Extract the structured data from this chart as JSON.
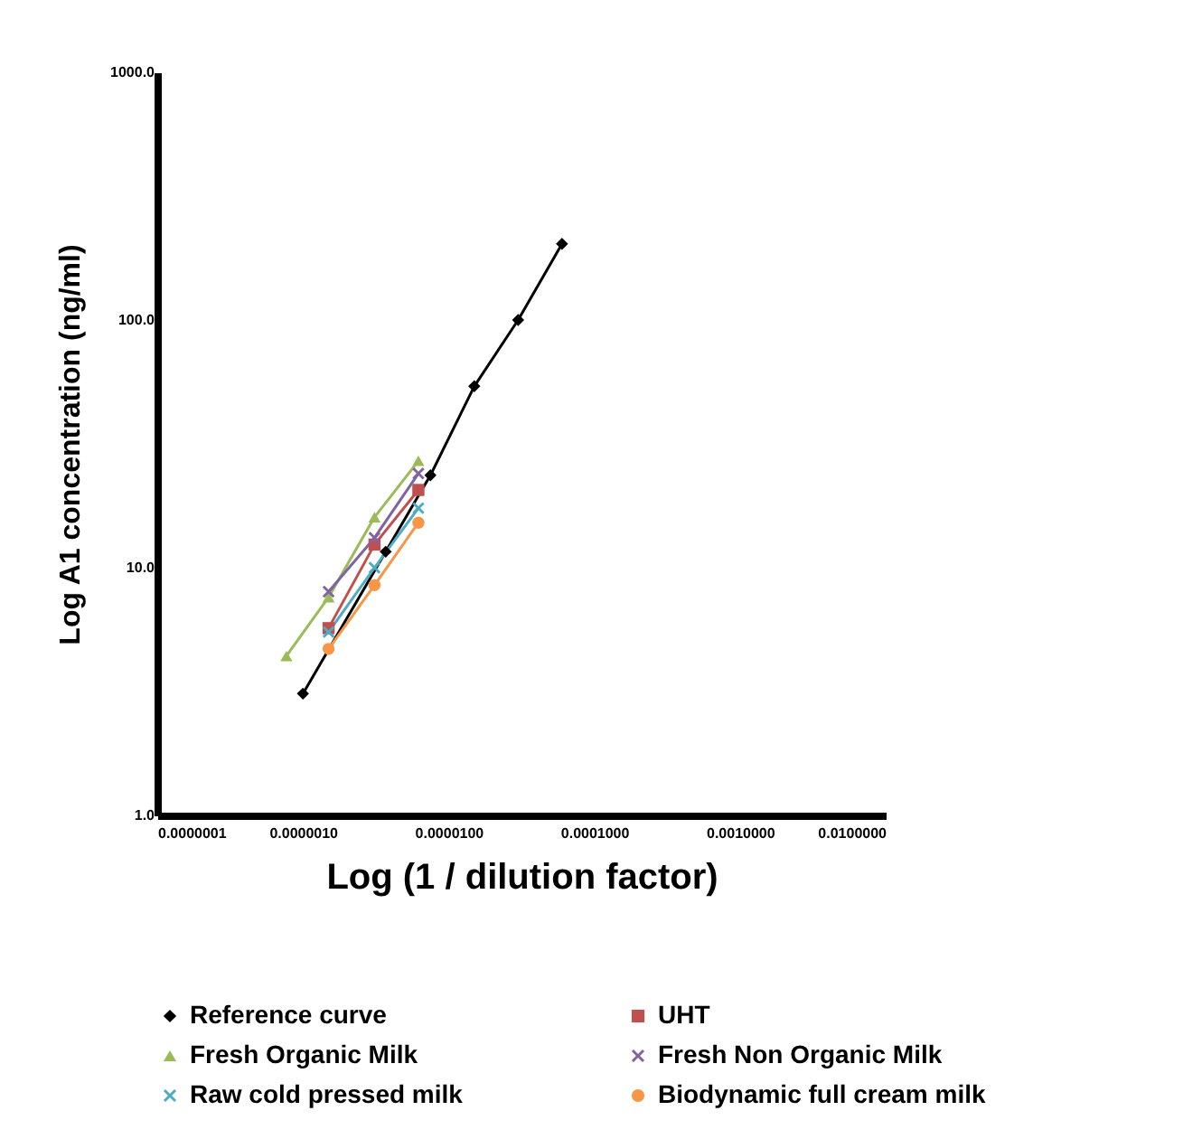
{
  "chart_data": {
    "type": "line",
    "xlabel": "Log (1 / dilution factor)",
    "ylabel": "Log A1 concentration (ng/ml)",
    "log": "xy",
    "xlim": [
      1e-07,
      0.01
    ],
    "ylim": [
      1,
      1000
    ],
    "xticks": [
      {
        "value": 1e-07,
        "label": "0.0000001"
      },
      {
        "value": 1e-06,
        "label": "0.0000010"
      },
      {
        "value": 1e-05,
        "label": "0.0000100"
      },
      {
        "value": 0.0001,
        "label": "0.0001000"
      },
      {
        "value": 0.001,
        "label": "0.0010000"
      },
      {
        "value": 0.01,
        "label": "0.0100000"
      }
    ],
    "yticks": [
      {
        "value": 1,
        "label": "1.0"
      },
      {
        "value": 10,
        "label": "10.0"
      },
      {
        "value": 100,
        "label": "100.0"
      },
      {
        "value": 1000,
        "label": "1000.0"
      }
    ],
    "grid": false,
    "legend": "bottom",
    "line_style": "solid",
    "series": [
      {
        "name": "Reference curve",
        "color": "#000000",
        "marker": "diamond",
        "x": [
          1e-06,
          3.7e-06,
          7.5e-06,
          1.5e-05,
          3e-05,
          6e-05
        ],
        "values": [
          3.1,
          11.6,
          23.6,
          54,
          100,
          203
        ]
      },
      {
        "name": "UHT",
        "color": "#c0504d",
        "marker": "square",
        "x": [
          1.5e-06,
          3.1e-06,
          6.2e-06
        ],
        "values": [
          5.7,
          12.4,
          20.6
        ]
      },
      {
        "name": "Fresh Organic Milk",
        "color": "#9bbb59",
        "marker": "triangle",
        "x": [
          7.7e-07,
          1.5e-06,
          3.1e-06,
          6.2e-06
        ],
        "values": [
          4.4,
          7.6,
          16,
          27
        ]
      },
      {
        "name": "Fresh Non Organic Milk",
        "color": "#8064a2",
        "marker": "cross",
        "x": [
          1.5e-06,
          3.1e-06,
          6.2e-06
        ],
        "values": [
          8,
          13.2,
          24
        ]
      },
      {
        "name": "Raw cold pressed milk",
        "color": "#4bacc6",
        "marker": "cross",
        "x": [
          1.5e-06,
          3.1e-06,
          6.2e-06
        ],
        "values": [
          5.5,
          10,
          17.4
        ]
      },
      {
        "name": "Biodynamic full cream milk",
        "color": "#f79646",
        "marker": "circle",
        "x": [
          1.5e-06,
          3.1e-06,
          6.2e-06
        ],
        "values": [
          4.7,
          8.5,
          15.2
        ]
      }
    ]
  }
}
